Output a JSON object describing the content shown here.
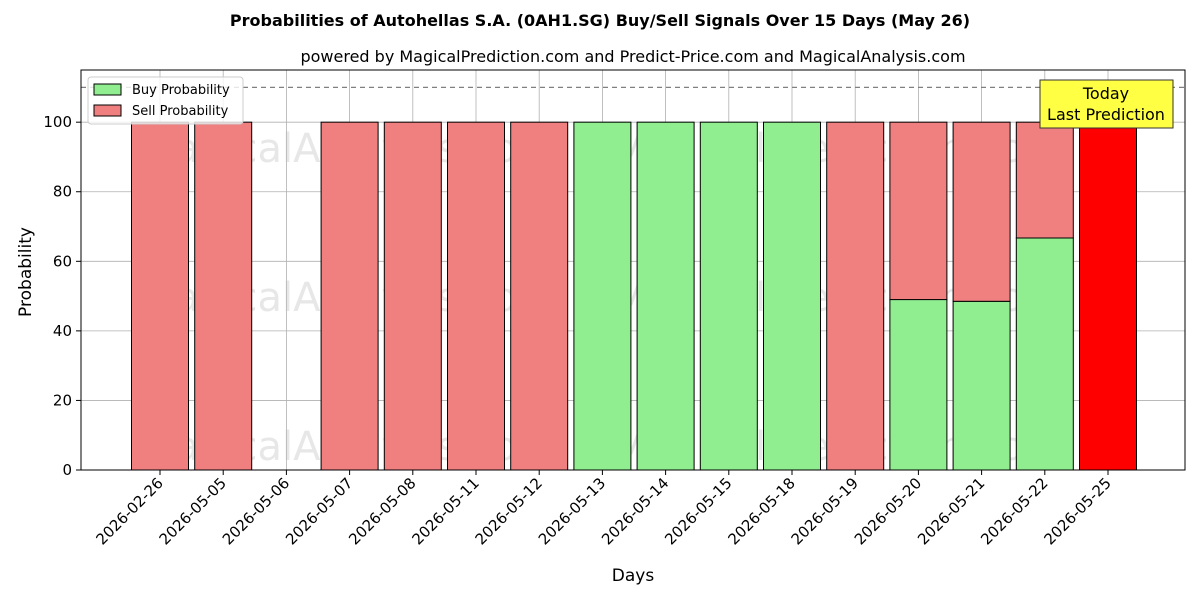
{
  "chart_data": {
    "type": "bar",
    "stacked": true,
    "title": "Probabilities of Autohellas S.A. (0AH1.SG) Buy/Sell Signals Over 15 Days (May 26)",
    "subtitle": "powered by MagicalPrediction.com and Predict-Price.com and MagicalAnalysis.com",
    "xlabel": "Days",
    "ylabel": "Probability",
    "ylim": [
      0,
      115
    ],
    "yticks": [
      0,
      20,
      40,
      60,
      80,
      100
    ],
    "grid": true,
    "legend_position": "top-left",
    "reference_line": 110,
    "categories": [
      "2026-02-26",
      "2026-05-05",
      "2026-05-06",
      "2026-05-07",
      "2026-05-08",
      "2026-05-11",
      "2026-05-12",
      "2026-05-13",
      "2026-05-14",
      "2026-05-15",
      "2026-05-18",
      "2026-05-19",
      "2026-05-20",
      "2026-05-21",
      "2026-05-22",
      "2026-05-25"
    ],
    "series": [
      {
        "name": "Buy Probability",
        "color": "#90ee90",
        "values": [
          0,
          0,
          0,
          0,
          0,
          0,
          0,
          100,
          100,
          100,
          100,
          0,
          49,
          48.5,
          66.7,
          0
        ]
      },
      {
        "name": "Sell Probability",
        "color": "#f08080",
        "values": [
          100,
          100,
          0,
          100,
          100,
          100,
          100,
          0,
          0,
          0,
          0,
          100,
          51,
          51.5,
          33.3,
          100
        ]
      }
    ],
    "highlight": {
      "index": 15,
      "color": "#ff0000"
    },
    "annotation": {
      "line1": "Today",
      "line2": "Last Prediction",
      "background": "#ffff44"
    },
    "watermarks": [
      "MagicalAnalysis.com",
      "MagicalPrediction.com"
    ]
  }
}
